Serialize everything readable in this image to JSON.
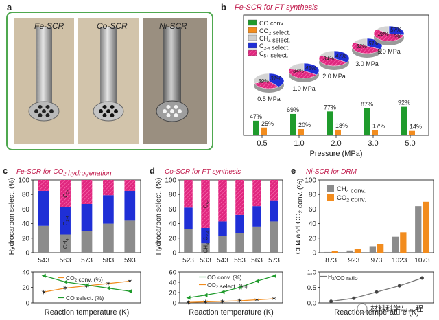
{
  "panel_a": {
    "label": "a",
    "tubes": [
      "Fe-SCR",
      "Co-SCR",
      "Ni-SCR"
    ],
    "colors": {
      "border": "#4fa84f",
      "photo_bg": "#c9b79a"
    }
  },
  "watermark": "材料科学与工程",
  "colors": {
    "green": "#1f9b2c",
    "orange": "#f28c1e",
    "gray": "#8c8c8c",
    "blue": "#1f2fd6",
    "magenta": "#e0277f",
    "title": "#c0184a"
  },
  "chart_data": [
    {
      "id": "b",
      "type": "bar",
      "label": "b",
      "title": "Fe-SCR for FT synthesis",
      "xlabel": "Pressure (MPa)",
      "categories": [
        "0.5",
        "1.0",
        "2.0",
        "3.0",
        "5.0"
      ],
      "series": [
        {
          "name": "CO conv.",
          "values": [
            47,
            69,
            77,
            87,
            92
          ],
          "data_labels": [
            "47%",
            "69%",
            "77%",
            "87%",
            "92%"
          ]
        },
        {
          "name": "CO2 select.",
          "values": [
            25,
            20,
            18,
            17,
            14
          ],
          "data_labels": [
            "25%",
            "20%",
            "18%",
            "17%",
            "14%"
          ]
        }
      ],
      "ylim": [
        0,
        100
      ],
      "legend": [
        "CO conv.",
        "CO2 select.",
        "CH4 select.",
        "C2-4 select.",
        "C5+ select."
      ],
      "pies": [
        {
          "label": "0.5 MPa",
          "ch4": 30,
          "c24": 39,
          "c5": 31,
          "texts": [
            "39%",
            "31%"
          ]
        },
        {
          "label": "1.0 MPa",
          "ch4": 21,
          "c24": 34,
          "c5": 45,
          "texts": [
            "34%",
            "45%"
          ]
        },
        {
          "label": "2.0 MPa",
          "ch4": 19,
          "c24": 34,
          "c5": 47,
          "texts": [
            "34%",
            "47%"
          ]
        },
        {
          "label": "3.0 MPa",
          "ch4": 17,
          "c24": 32,
          "c5": 51,
          "texts": [
            "32%",
            "51%"
          ]
        },
        {
          "label": "5.0 MPa",
          "ch4": 15,
          "c24": 28,
          "c5": 57,
          "texts": [
            "28%",
            "15%",
            "57%"
          ]
        }
      ]
    },
    {
      "id": "c",
      "type": "bar",
      "stacked": true,
      "label": "c",
      "title": "Fe-SCR for CO2 hydrogenation",
      "ylabel": "Hydrocarbon select. (%)",
      "xlabel": "Reaction temperature (K)",
      "categories": [
        "543",
        "563",
        "573",
        "583",
        "593"
      ],
      "ylim": [
        0,
        100
      ],
      "yticks": [
        "0",
        "20",
        "40",
        "60",
        "80",
        "100"
      ],
      "series": [
        {
          "name": "CH4",
          "values": [
            37,
            25,
            30,
            40,
            44
          ]
        },
        {
          "name": "C2-4",
          "values": [
            48,
            38,
            37,
            39,
            41
          ]
        },
        {
          "name": "C5+",
          "values": [
            15,
            37,
            33,
            21,
            15
          ]
        }
      ],
      "bar_labels": [
        "CH4",
        "C2-4",
        "C5+"
      ],
      "sub": {
        "type": "line",
        "ylim": [
          0,
          40
        ],
        "yticks": [
          "0",
          "20",
          "40"
        ],
        "series": [
          {
            "name": "CO2 conv. (%)",
            "values": [
              14,
              19,
              22,
              25,
              28
            ]
          },
          {
            "name": "CO select. (%)",
            "values": [
              35,
              27,
              23,
              19,
              15
            ]
          }
        ]
      }
    },
    {
      "id": "d",
      "type": "bar",
      "stacked": true,
      "label": "d",
      "title": "Co-SCR for FT synthesis",
      "ylabel": "Hydrocarbon select. (%)",
      "xlabel": "Reaction temperature (K)",
      "categories": [
        "523",
        "533",
        "543",
        "553",
        "563",
        "573"
      ],
      "ylim": [
        0,
        100
      ],
      "yticks": [
        "0",
        "20",
        "40",
        "60",
        "80",
        "100"
      ],
      "series": [
        {
          "name": "CH4",
          "values": [
            33,
            13,
            23,
            27,
            36,
            43
          ]
        },
        {
          "name": "C2-4",
          "values": [
            29,
            21,
            20,
            25,
            28,
            29
          ]
        },
        {
          "name": "C5+",
          "values": [
            38,
            66,
            57,
            48,
            36,
            28
          ]
        }
      ],
      "bar_labels": [
        "CH4",
        "C2-4",
        "C5+"
      ],
      "sub": {
        "type": "line",
        "ylim": [
          0,
          60
        ],
        "yticks": [
          "0",
          "20",
          "40",
          "60"
        ],
        "series": [
          {
            "name": "CO conv. (%)",
            "values": [
              10,
              15,
              21,
              30,
              42,
              52
            ]
          },
          {
            "name": "CO2 select. (%)",
            "values": [
              1,
              2,
              3,
              4,
              6,
              8
            ]
          }
        ]
      }
    },
    {
      "id": "e",
      "type": "bar",
      "label": "e",
      "title": "Ni-SCR for DRM",
      "ylabel": "CH4 and CO2 conv. (%)",
      "xlabel": "Reaction temperature (K)",
      "categories": [
        "873",
        "923",
        "973",
        "1023",
        "1073"
      ],
      "ylim": [
        0,
        100
      ],
      "yticks": [
        "0",
        "20",
        "40",
        "60",
        "80",
        "100"
      ],
      "series": [
        {
          "name": "CH4 conv.",
          "values": [
            1,
            3,
            9,
            22,
            64
          ]
        },
        {
          "name": "CO2 conv.",
          "values": [
            2,
            5,
            12,
            28,
            70
          ]
        }
      ],
      "sub": {
        "type": "line",
        "ylim": [
          0,
          1.0
        ],
        "yticks": [
          "0.0",
          "0.5",
          "1.0"
        ],
        "series": [
          {
            "name": "H2/CO ratio",
            "values": [
              0.05,
              0.15,
              0.35,
              0.55,
              0.8
            ]
          }
        ]
      }
    }
  ]
}
